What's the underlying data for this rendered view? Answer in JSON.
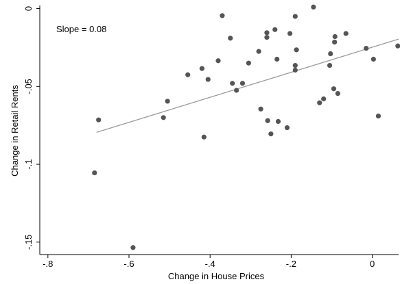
{
  "chart_data": {
    "type": "scatter",
    "title": "",
    "xlabel": "Change in House Prices",
    "ylabel": "Change in Retail Rents",
    "xlim": [
      -0.82,
      0.065
    ],
    "ylim": [
      -0.158,
      0.002
    ],
    "xticks": [
      -0.8,
      -0.6,
      -0.4,
      -0.2,
      0
    ],
    "xtick_labels": [
      "-.8",
      "-.6",
      "-.4",
      "-.2",
      "0"
    ],
    "yticks": [
      0,
      -0.05,
      -0.1,
      -0.15
    ],
    "ytick_labels": [
      "0",
      "-.05",
      "-.1",
      "-.15"
    ],
    "grid": false,
    "annotation": "Slope = 0.08",
    "colors": {
      "points": "#555555",
      "fit_line": "#9a9a9a",
      "axes": "#000000"
    },
    "fit_line": {
      "x": [
        -0.68,
        0.065
      ],
      "y": [
        -0.0795,
        -0.0196
      ]
    },
    "points": [
      {
        "x": -0.685,
        "y": -0.1055
      },
      {
        "x": -0.675,
        "y": -0.0715
      },
      {
        "x": -0.59,
        "y": -0.1535
      },
      {
        "x": -0.515,
        "y": -0.07
      },
      {
        "x": -0.505,
        "y": -0.0595
      },
      {
        "x": -0.455,
        "y": -0.0425
      },
      {
        "x": -0.42,
        "y": -0.0385
      },
      {
        "x": -0.415,
        "y": -0.0825
      },
      {
        "x": -0.405,
        "y": -0.0455
      },
      {
        "x": -0.38,
        "y": -0.0335
      },
      {
        "x": -0.37,
        "y": -0.0045
      },
      {
        "x": -0.35,
        "y": -0.019
      },
      {
        "x": -0.345,
        "y": -0.048
      },
      {
        "x": -0.335,
        "y": -0.0525
      },
      {
        "x": -0.32,
        "y": -0.048
      },
      {
        "x": -0.305,
        "y": -0.035
      },
      {
        "x": -0.28,
        "y": -0.0275
      },
      {
        "x": -0.275,
        "y": -0.0645
      },
      {
        "x": -0.26,
        "y": -0.0155
      },
      {
        "x": -0.26,
        "y": -0.0185
      },
      {
        "x": -0.258,
        "y": -0.072
      },
      {
        "x": -0.25,
        "y": -0.0805
      },
      {
        "x": -0.24,
        "y": -0.0135
      },
      {
        "x": -0.235,
        "y": -0.0325
      },
      {
        "x": -0.232,
        "y": -0.0725
      },
      {
        "x": -0.21,
        "y": -0.0765
      },
      {
        "x": -0.203,
        "y": -0.016
      },
      {
        "x": -0.19,
        "y": -0.0395
      },
      {
        "x": -0.19,
        "y": -0.0365
      },
      {
        "x": -0.19,
        "y": -0.005
      },
      {
        "x": -0.187,
        "y": -0.0265
      },
      {
        "x": -0.145,
        "y": 0.001
      },
      {
        "x": -0.13,
        "y": -0.0605
      },
      {
        "x": -0.12,
        "y": -0.058
      },
      {
        "x": -0.105,
        "y": -0.0365
      },
      {
        "x": -0.103,
        "y": -0.029
      },
      {
        "x": -0.095,
        "y": -0.0515
      },
      {
        "x": -0.093,
        "y": -0.0215
      },
      {
        "x": -0.092,
        "y": -0.018
      },
      {
        "x": -0.085,
        "y": -0.0545
      },
      {
        "x": -0.065,
        "y": -0.016
      },
      {
        "x": -0.015,
        "y": -0.0255
      },
      {
        "x": 0.003,
        "y": -0.0325
      },
      {
        "x": 0.015,
        "y": -0.069
      },
      {
        "x": 0.063,
        "y": -0.024
      }
    ]
  }
}
